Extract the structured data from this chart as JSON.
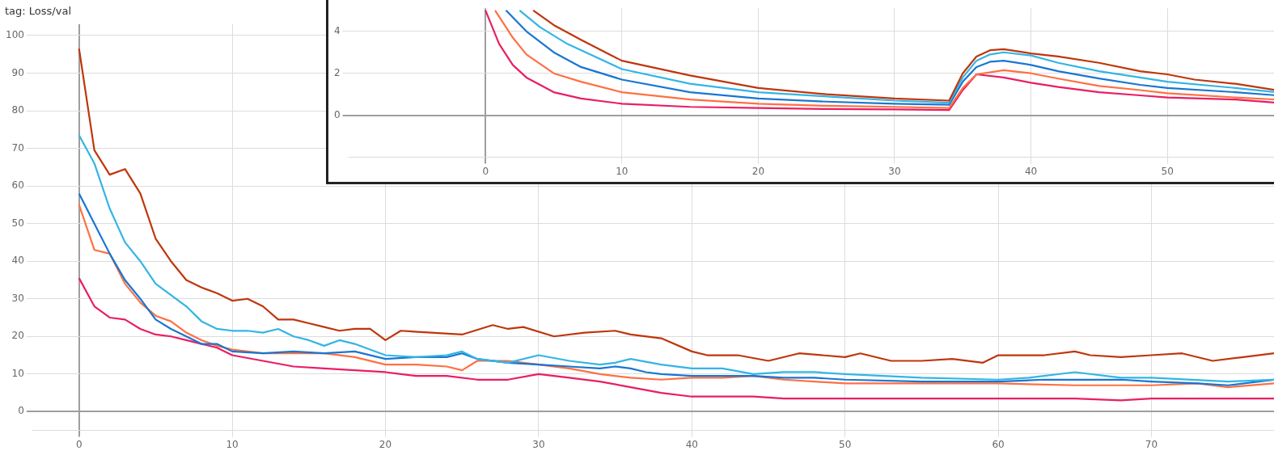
{
  "chart_data": [
    {
      "type": "line",
      "title": "tag: Loss/val",
      "xlim": [
        -3,
        78
      ],
      "xticks": [
        0,
        10,
        20,
        30,
        40,
        50,
        60,
        70
      ],
      "ylim": [
        -5,
        103
      ],
      "yticks": [
        0,
        10,
        20,
        30,
        40,
        50,
        60,
        70,
        80,
        90,
        100
      ],
      "grid": true,
      "series": [
        {
          "color": "#bf360c",
          "x": [
            0,
            1,
            2,
            3,
            4,
            5,
            6,
            7,
            8,
            9,
            10,
            11,
            12,
            13,
            14,
            15,
            16,
            17,
            18,
            19,
            20,
            21,
            25,
            27,
            28,
            29,
            31,
            33,
            35,
            36,
            38,
            40,
            41,
            43,
            45,
            47,
            50,
            51,
            53,
            55,
            57,
            59,
            60,
            63,
            65,
            66,
            68,
            70,
            72,
            74,
            76,
            78
          ],
          "values": [
            96.5,
            69.5,
            63,
            64.5,
            58,
            46,
            40,
            35,
            33,
            31.5,
            29.5,
            30,
            28,
            24.5,
            24.5,
            23.5,
            22.5,
            21.5,
            22,
            22,
            19,
            21.5,
            20.5,
            23,
            22,
            22.5,
            20,
            21,
            21.5,
            20.5,
            19.5,
            16,
            15,
            15,
            13.5,
            15.5,
            14.5,
            15.5,
            13.5,
            13.5,
            14,
            13,
            15,
            15,
            16,
            15,
            14.5,
            15,
            15.5,
            13.5,
            14.5,
            15.5
          ]
        },
        {
          "color": "#33b5e5",
          "x": [
            0,
            1,
            2,
            3,
            4,
            5,
            6,
            7,
            8,
            9,
            10,
            11,
            12,
            13,
            14,
            15,
            16,
            17,
            18,
            20,
            22,
            24,
            25,
            26,
            28,
            30,
            32,
            34,
            35,
            36,
            38,
            40,
            42,
            44,
            46,
            48,
            50,
            55,
            60,
            62,
            65,
            68,
            70,
            75,
            78
          ],
          "values": [
            73.5,
            66,
            54,
            45,
            40,
            34,
            31,
            28,
            24,
            22,
            21.5,
            21.5,
            21,
            22,
            20,
            19,
            17.5,
            19,
            18,
            15,
            14.5,
            15,
            16,
            14,
            13,
            15,
            13.5,
            12.5,
            13,
            14,
            12.5,
            11.5,
            11.5,
            10,
            10.5,
            10.5,
            10,
            9,
            8.5,
            9,
            10.5,
            9,
            9,
            8,
            8.5
          ]
        },
        {
          "color": "#1976d2",
          "x": [
            0,
            1,
            2,
            3,
            4,
            5,
            6,
            7,
            8,
            9,
            10,
            12,
            14,
            16,
            18,
            20,
            22,
            24,
            25,
            26,
            28,
            30,
            32,
            34,
            35,
            36,
            37,
            38,
            40,
            42,
            44,
            46,
            48,
            50,
            55,
            60,
            63,
            65,
            68,
            70,
            73,
            75,
            78
          ],
          "values": [
            58,
            50,
            42,
            35,
            30,
            24.5,
            22,
            20,
            18,
            18,
            16,
            15.5,
            16,
            15.5,
            16,
            14,
            14.5,
            14.5,
            15.5,
            14,
            13,
            12.5,
            12,
            11.5,
            12,
            11.5,
            10.5,
            10,
            9.5,
            9.5,
            9.5,
            9,
            9,
            8.5,
            8,
            8,
            8.5,
            8.5,
            8.5,
            8,
            7.5,
            7,
            8.5
          ]
        },
        {
          "color": "#ff7043",
          "x": [
            0,
            1,
            2,
            3,
            4,
            5,
            6,
            7,
            8,
            9,
            10,
            12,
            14,
            16,
            18,
            20,
            22,
            24,
            25,
            26,
            28,
            30,
            32,
            34,
            36,
            38,
            40,
            42,
            44,
            46,
            48,
            50,
            55,
            60,
            65,
            70,
            73,
            75,
            78
          ],
          "values": [
            55,
            43,
            42,
            34,
            29,
            25.5,
            24,
            21,
            19,
            17.5,
            16.5,
            15.5,
            15.5,
            15.5,
            14.5,
            12.5,
            12.5,
            12,
            11,
            13.5,
            13.5,
            12.5,
            11.5,
            10,
            9,
            8.5,
            9,
            9,
            9.5,
            8.5,
            8,
            7.5,
            7.5,
            7.5,
            7,
            7,
            7.5,
            6.5,
            7.5
          ]
        },
        {
          "color": "#e91e63",
          "x": [
            0,
            1,
            2,
            3,
            4,
            5,
            6,
            7,
            8,
            9,
            10,
            12,
            14,
            16,
            18,
            20,
            21,
            22,
            24,
            26,
            28,
            30,
            32,
            34,
            36,
            38,
            40,
            42,
            44,
            46,
            48,
            50,
            55,
            60,
            65,
            68,
            70,
            75,
            78
          ],
          "values": [
            35.5,
            28,
            25,
            24.5,
            22,
            20.5,
            20,
            19,
            18,
            17,
            15,
            13.5,
            12,
            11.5,
            11,
            10.5,
            10,
            9.5,
            9.5,
            8.5,
            8.5,
            10,
            9,
            8,
            6.5,
            5,
            4,
            4,
            4,
            3.5,
            3.5,
            3.5,
            3.5,
            3.5,
            3.5,
            3,
            3.5,
            3.5,
            3.5
          ]
        }
      ]
    },
    {
      "type": "line",
      "xlim": [
        -10,
        58
      ],
      "xticks": [
        0,
        10,
        20,
        30,
        40,
        50
      ],
      "ylim": [
        -2,
        5.1
      ],
      "yticks": [
        0,
        2,
        4
      ],
      "grid": true,
      "series": [
        {
          "color": "#bf360c",
          "x": [
            3.5,
            5,
            7,
            10,
            15,
            20,
            25,
            30,
            34,
            35,
            36,
            37,
            38,
            40,
            42,
            45,
            48,
            50,
            52,
            55,
            58
          ],
          "values": [
            5,
            4.3,
            3.6,
            2.6,
            1.9,
            1.3,
            1.0,
            0.8,
            0.7,
            2.0,
            2.8,
            3.1,
            3.15,
            2.95,
            2.8,
            2.5,
            2.1,
            1.95,
            1.7,
            1.5,
            1.2
          ]
        },
        {
          "color": "#33b5e5",
          "x": [
            2.5,
            4,
            6,
            10,
            15,
            20,
            25,
            30,
            34,
            35,
            36,
            37,
            38,
            40,
            42,
            45,
            48,
            50,
            55,
            58
          ],
          "values": [
            5,
            4.2,
            3.4,
            2.2,
            1.5,
            1.1,
            0.9,
            0.7,
            0.6,
            1.8,
            2.6,
            2.9,
            3.0,
            2.85,
            2.5,
            2.1,
            1.8,
            1.6,
            1.3,
            1.1
          ]
        },
        {
          "color": "#1976d2",
          "x": [
            1.5,
            3,
            5,
            7,
            10,
            15,
            20,
            25,
            30,
            34,
            35,
            36,
            37,
            38,
            40,
            42,
            45,
            48,
            50,
            55,
            58
          ],
          "values": [
            5,
            4,
            3,
            2.3,
            1.7,
            1.1,
            0.8,
            0.65,
            0.55,
            0.5,
            1.6,
            2.3,
            2.55,
            2.6,
            2.4,
            2.1,
            1.75,
            1.45,
            1.3,
            1.1,
            0.95
          ]
        },
        {
          "color": "#ff7043",
          "x": [
            0.7,
            2,
            3,
            5,
            7,
            10,
            15,
            20,
            25,
            30,
            34,
            35,
            36,
            38,
            40,
            42,
            45,
            48,
            50,
            55,
            58
          ],
          "values": [
            5,
            3.7,
            2.9,
            2.0,
            1.6,
            1.1,
            0.75,
            0.55,
            0.45,
            0.4,
            0.35,
            1.3,
            1.95,
            2.15,
            2.0,
            1.75,
            1.4,
            1.2,
            1.05,
            0.85,
            0.75
          ]
        },
        {
          "color": "#e91e63",
          "x": [
            0,
            1,
            2,
            3,
            5,
            7,
            10,
            15,
            20,
            25,
            30,
            34,
            35,
            36,
            38,
            40,
            42,
            45,
            48,
            50,
            55,
            58
          ],
          "values": [
            5,
            3.4,
            2.4,
            1.8,
            1.1,
            0.8,
            0.55,
            0.4,
            0.35,
            0.3,
            0.28,
            0.25,
            1.2,
            1.95,
            1.8,
            1.55,
            1.35,
            1.1,
            0.95,
            0.85,
            0.75,
            0.6
          ]
        }
      ]
    }
  ]
}
